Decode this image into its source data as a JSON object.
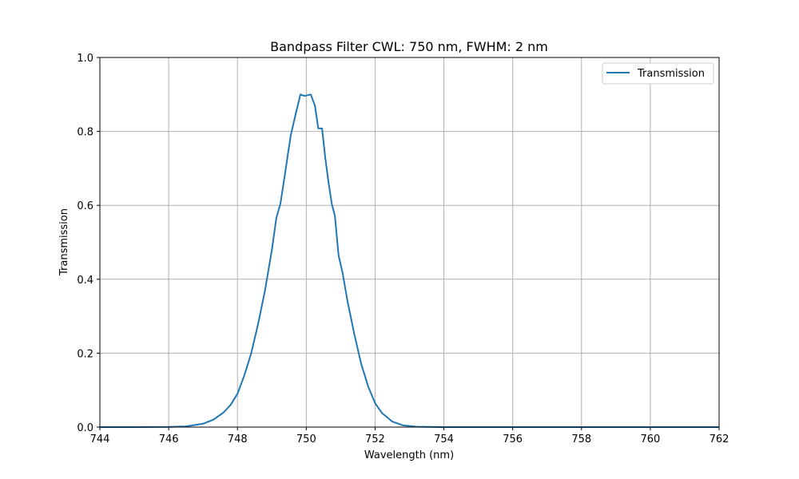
{
  "chart_data": {
    "type": "line",
    "title": "Bandpass Filter CWL: 750 nm, FWHM: 2 nm",
    "xlabel": "Wavelength (nm)",
    "ylabel": "Transmission",
    "xlim": [
      744,
      762
    ],
    "ylim": [
      0.0,
      1.0
    ],
    "xticks": [
      744,
      746,
      748,
      750,
      752,
      754,
      756,
      758,
      760,
      762
    ],
    "xtick_labels": [
      "744",
      "746",
      "748",
      "750",
      "752",
      "754",
      "756",
      "758",
      "760",
      "762"
    ],
    "yticks": [
      0.0,
      0.2,
      0.4,
      0.6,
      0.8,
      1.0
    ],
    "ytick_labels": [
      "0.0",
      "0.2",
      "0.4",
      "0.6",
      "0.8",
      "1.0"
    ],
    "grid": true,
    "legend": {
      "position": "upper right",
      "entries": [
        "Transmission"
      ]
    },
    "series": [
      {
        "name": "Transmission",
        "color": "#1f77b4",
        "x": [
          744.0,
          745.0,
          746.0,
          746.5,
          747.0,
          747.3,
          747.6,
          747.8,
          748.0,
          748.2,
          748.4,
          748.6,
          748.8,
          749.0,
          749.13,
          749.25,
          749.35,
          749.46,
          749.55,
          749.7,
          749.83,
          749.95,
          750.13,
          750.25,
          750.35,
          750.46,
          750.55,
          750.65,
          750.74,
          750.83,
          750.94,
          751.05,
          751.2,
          751.4,
          751.6,
          751.8,
          752.0,
          752.2,
          752.5,
          752.8,
          753.2,
          754.0,
          755.0,
          762.0
        ],
        "y": [
          0.0,
          0.0,
          0.0005,
          0.002,
          0.009,
          0.02,
          0.04,
          0.06,
          0.09,
          0.14,
          0.2,
          0.28,
          0.37,
          0.48,
          0.566,
          0.605,
          0.665,
          0.735,
          0.79,
          0.85,
          0.9,
          0.896,
          0.9,
          0.87,
          0.808,
          0.808,
          0.73,
          0.66,
          0.605,
          0.572,
          0.464,
          0.42,
          0.34,
          0.25,
          0.17,
          0.11,
          0.065,
          0.038,
          0.015,
          0.005,
          0.001,
          0.0,
          0.0,
          0.0
        ]
      }
    ]
  }
}
